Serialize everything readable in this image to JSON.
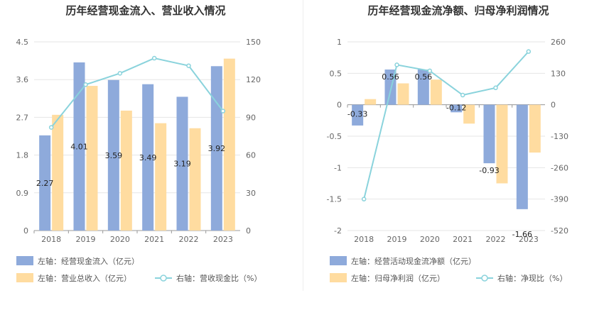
{
  "chart_data": [
    {
      "type": "bar",
      "title": "历年经营现金流入、营业收入情况",
      "categories": [
        "2018",
        "2019",
        "2020",
        "2021",
        "2022",
        "2023"
      ],
      "left_axis": {
        "ylim": [
          0,
          4.5
        ],
        "ticks": [
          "0",
          "0.9",
          "1.8",
          "2.7",
          "3.6",
          "4.5"
        ]
      },
      "right_axis": {
        "ylim": [
          0,
          150
        ],
        "ticks": [
          "0",
          "30",
          "60",
          "90",
          "120",
          "150"
        ]
      },
      "series": [
        {
          "name": "左轴：经营现金流入（亿元）",
          "type": "bar",
          "axis": "left",
          "color": "#8eaadb",
          "values": [
            2.27,
            4.01,
            3.59,
            3.49,
            3.19,
            3.92
          ],
          "show_labels": true
        },
        {
          "name": "左轴：营业总收入（亿元）",
          "type": "bar",
          "axis": "left",
          "color": "#ffdca0",
          "values": [
            2.76,
            3.45,
            2.86,
            2.56,
            2.44,
            4.1
          ],
          "show_labels": false
        },
        {
          "name": "右轴：营收现金比（%）",
          "type": "line",
          "axis": "right",
          "color": "#8ad3dc",
          "values": [
            82,
            116,
            125,
            137,
            131,
            95
          ],
          "show_labels": false
        }
      ],
      "legend_position": "bottom-left"
    },
    {
      "type": "bar",
      "title": "历年经营现金流净额、归母净利润情况",
      "categories": [
        "2018",
        "2019",
        "2020",
        "2021",
        "2022",
        "2023"
      ],
      "left_axis": {
        "ylim": [
          -2,
          1
        ],
        "ticks": [
          "-2",
          "-1.5",
          "-1",
          "-0.5",
          "0",
          "0.5",
          "1"
        ]
      },
      "right_axis": {
        "ylim": [
          -520,
          260
        ],
        "ticks": [
          "-520",
          "-390",
          "-260",
          "-130",
          "0",
          "130",
          "260"
        ]
      },
      "series": [
        {
          "name": "左轴：经营活动现金流净额（亿元）",
          "type": "bar",
          "axis": "left",
          "color": "#8eaadb",
          "values": [
            -0.33,
            0.56,
            0.56,
            -0.12,
            -0.93,
            -1.66
          ],
          "show_labels": true
        },
        {
          "name": "左轴：归母净利润（亿元）",
          "type": "bar",
          "axis": "left",
          "color": "#ffdca0",
          "values": [
            0.09,
            0.34,
            0.4,
            -0.3,
            -1.25,
            -0.76
          ],
          "show_labels": false
        },
        {
          "name": "右轴：净现比（%）",
          "type": "line",
          "axis": "right",
          "color": "#8ad3dc",
          "values": [
            -390,
            165,
            140,
            40,
            70,
            220
          ],
          "show_labels": false
        }
      ],
      "legend_position": "bottom-left"
    }
  ]
}
